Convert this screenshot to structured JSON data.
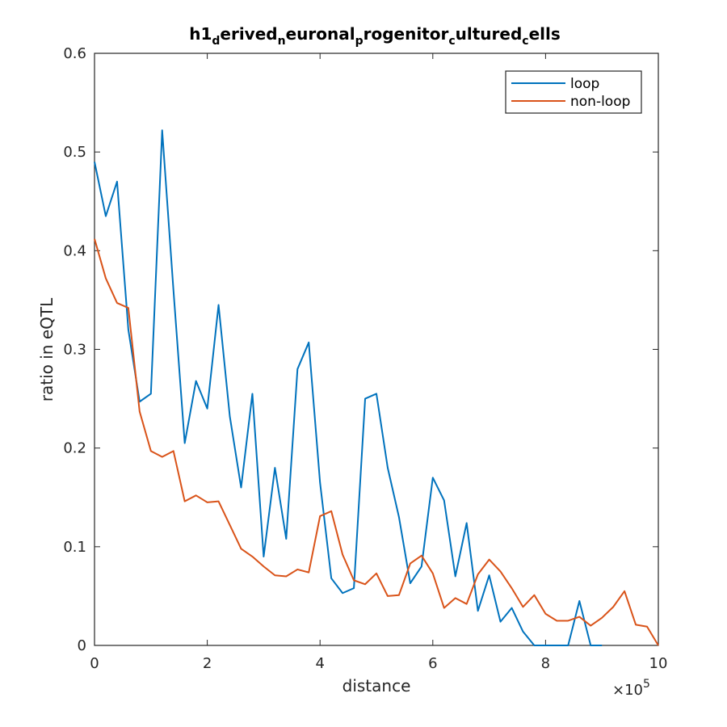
{
  "chart_data": {
    "type": "line",
    "title_parts": [
      {
        "text": "h1",
        "sub": false
      },
      {
        "text": "d",
        "sub": true
      },
      {
        "text": "erived",
        "sub": false
      },
      {
        "text": "n",
        "sub": true
      },
      {
        "text": "euronal",
        "sub": false
      },
      {
        "text": "p",
        "sub": true
      },
      {
        "text": "rogenitor",
        "sub": false
      },
      {
        "text": "c",
        "sub": true
      },
      {
        "text": "ultured",
        "sub": false
      },
      {
        "text": "c",
        "sub": true
      },
      {
        "text": "ells",
        "sub": false
      }
    ],
    "xlabel": "distance",
    "ylabel": "ratio in eQTL",
    "x_multiplier": {
      "base": "×10",
      "exp": "5"
    },
    "xlim": [
      0,
      10
    ],
    "ylim": [
      0,
      0.6
    ],
    "xticks": [
      "0",
      "2",
      "4",
      "6",
      "8",
      "10"
    ],
    "yticks": [
      "0",
      "0.1",
      "0.2",
      "0.3",
      "0.4",
      "0.5",
      "0.6"
    ],
    "grid": false,
    "legend_position": "top-right",
    "x": [
      0,
      0.2,
      0.4,
      0.6,
      0.8,
      1.0,
      1.2,
      1.4,
      1.6,
      1.8,
      2.0,
      2.2,
      2.4,
      2.6,
      2.8,
      3.0,
      3.2,
      3.4,
      3.6,
      3.8,
      4.0,
      4.2,
      4.4,
      4.6,
      4.8,
      5.0,
      5.2,
      5.4,
      5.6,
      5.8,
      6.0,
      6.2,
      6.4,
      6.6,
      6.8,
      7.0,
      7.2,
      7.4,
      7.6,
      7.8,
      8.0,
      8.2,
      8.4,
      8.6,
      8.8,
      9.0
    ],
    "series": [
      {
        "name": "loop",
        "color": "#0072BD",
        "x": [
          0,
          0.2,
          0.4,
          0.6,
          0.8,
          1.0,
          1.2,
          1.4,
          1.6,
          1.8,
          2.0,
          2.2,
          2.4,
          2.6,
          2.8,
          3.0,
          3.2,
          3.4,
          3.6,
          3.8,
          4.0,
          4.2,
          4.4,
          4.6,
          4.8,
          5.0,
          5.2,
          5.4,
          5.6,
          5.8,
          6.0,
          6.2,
          6.4,
          6.6,
          6.8,
          7.0,
          7.2,
          7.4,
          7.6,
          7.8,
          8.0,
          8.2,
          8.4,
          8.6,
          8.8,
          9.0
        ],
        "values": [
          0.49,
          0.435,
          0.47,
          0.32,
          0.247,
          0.255,
          0.522,
          0.36,
          0.205,
          0.268,
          0.24,
          0.345,
          0.232,
          0.16,
          0.255,
          0.09,
          0.18,
          0.108,
          0.28,
          0.307,
          0.165,
          0.068,
          0.053,
          0.058,
          0.25,
          0.255,
          0.18,
          0.13,
          0.063,
          0.08,
          0.17,
          0.147,
          0.07,
          0.124,
          0.035,
          0.071,
          0.024,
          0.038,
          0.014,
          0.0,
          0.0,
          0.0,
          0.0,
          0.045,
          0.0,
          0.0
        ]
      },
      {
        "name": "non-loop",
        "color": "#D95319",
        "x": [
          0,
          0.2,
          0.4,
          0.6,
          0.8,
          1.0,
          1.2,
          1.4,
          1.6,
          1.8,
          2.0,
          2.2,
          2.4,
          2.6,
          2.8,
          3.0,
          3.2,
          3.4,
          3.6,
          3.8,
          4.0,
          4.2,
          4.4,
          4.6,
          4.8,
          5.0,
          5.2,
          5.4,
          5.6,
          5.8,
          6.0,
          6.2,
          6.4,
          6.6,
          6.8,
          7.0,
          7.2,
          7.4,
          7.6,
          7.8,
          8.0,
          8.2,
          8.4,
          8.6,
          8.8,
          9.0,
          9.2,
          9.4,
          9.6,
          9.8,
          10.0
        ],
        "values": [
          0.412,
          0.372,
          0.347,
          0.342,
          0.237,
          0.197,
          0.191,
          0.197,
          0.146,
          0.152,
          0.145,
          0.146,
          0.122,
          0.098,
          0.09,
          0.08,
          0.071,
          0.07,
          0.077,
          0.074,
          0.131,
          0.136,
          0.092,
          0.066,
          0.062,
          0.073,
          0.05,
          0.051,
          0.083,
          0.091,
          0.073,
          0.038,
          0.048,
          0.042,
          0.072,
          0.087,
          0.075,
          0.058,
          0.039,
          0.051,
          0.032,
          0.025,
          0.025,
          0.029,
          0.02,
          0.028,
          0.039,
          0.055,
          0.021,
          0.019,
          0.0
        ]
      }
    ]
  }
}
